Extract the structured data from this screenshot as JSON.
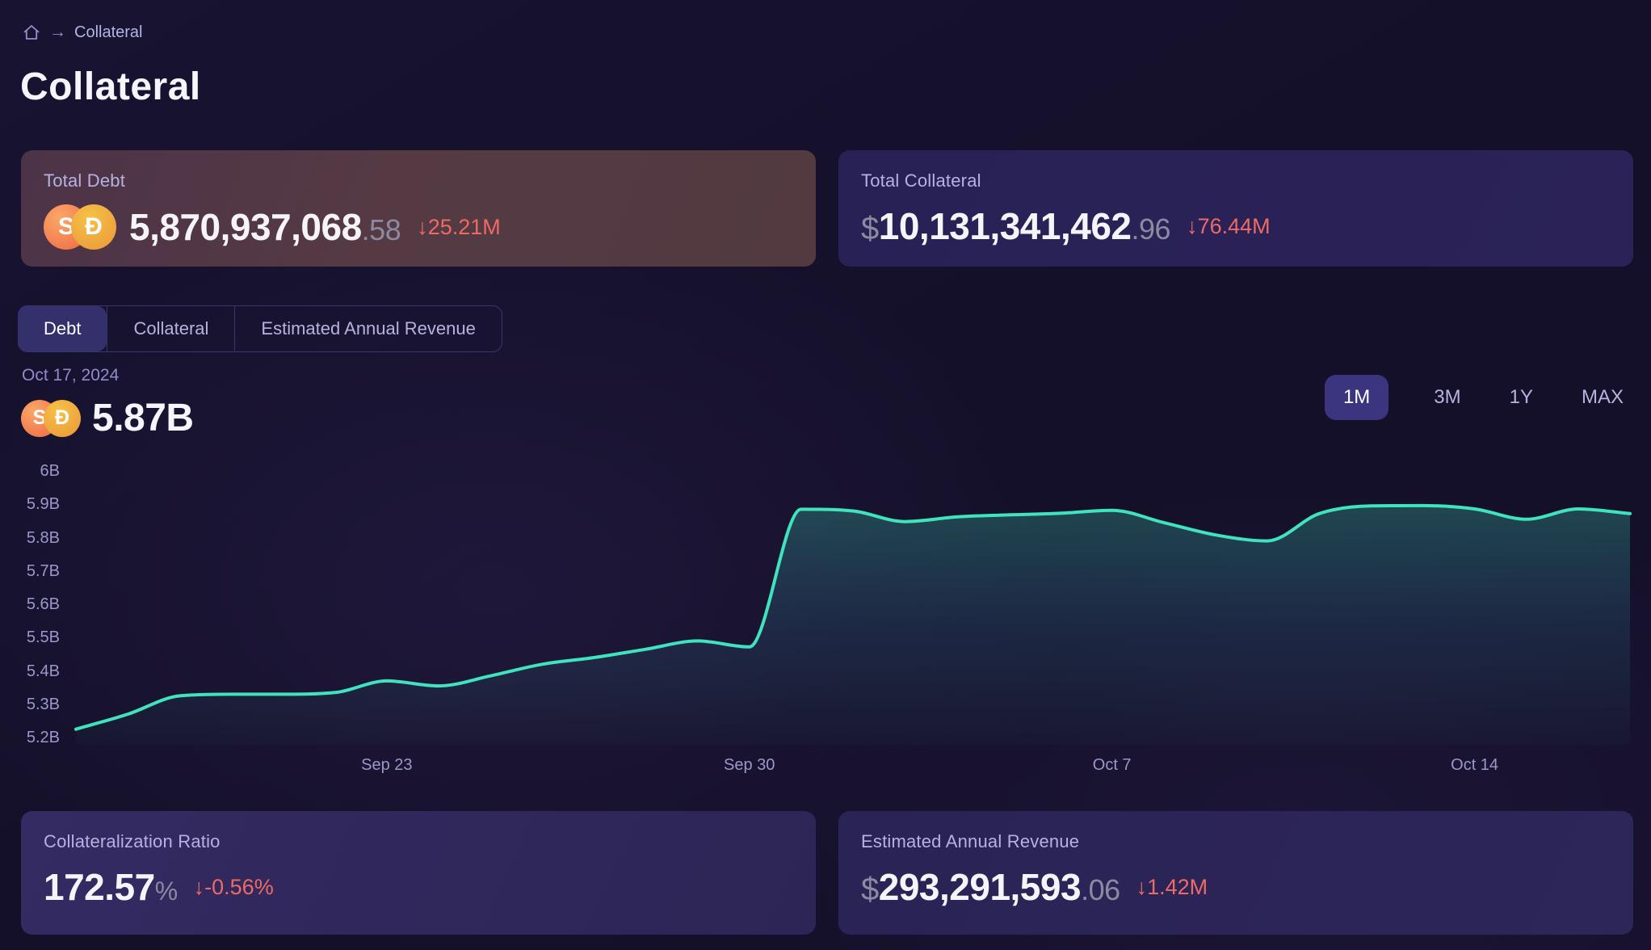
{
  "breadcrumb": {
    "separator": "→",
    "current": "Collateral"
  },
  "page_title": "Collateral",
  "token_icons": {
    "s_symbol": "S",
    "d_symbol": "Đ"
  },
  "stats": {
    "total_debt": {
      "label": "Total Debt",
      "value_int": "5,870,937,068",
      "value_dec": ".58",
      "delta": "↓25.21M"
    },
    "total_collateral": {
      "label": "Total Collateral",
      "currency": "$",
      "value_int": "10,131,341,462",
      "value_dec": ".96",
      "delta": "↓76.44M"
    }
  },
  "tabs": [
    {
      "label": "Debt",
      "active": true
    },
    {
      "label": "Collateral",
      "active": false
    },
    {
      "label": "Estimated Annual Revenue",
      "active": false
    }
  ],
  "chart_header": {
    "date": "Oct 17, 2024",
    "value": "5.87B"
  },
  "ranges": [
    {
      "label": "1M",
      "active": true
    },
    {
      "label": "3M",
      "active": false
    },
    {
      "label": "1Y",
      "active": false
    },
    {
      "label": "MAX",
      "active": false
    }
  ],
  "chart_data": {
    "type": "area",
    "series_label": "Debt",
    "x": [
      "Sep 17",
      "Sep 18",
      "Sep 19",
      "Sep 20",
      "Sep 21",
      "Sep 22",
      "Sep 23",
      "Sep 24",
      "Sep 25",
      "Sep 26",
      "Sep 27",
      "Sep 28",
      "Sep 29",
      "Sep 30",
      "Oct 1",
      "Oct 2",
      "Oct 3",
      "Oct 4",
      "Oct 5",
      "Oct 6",
      "Oct 7",
      "Oct 8",
      "Oct 9",
      "Oct 10",
      "Oct 11",
      "Oct 12",
      "Oct 13",
      "Oct 14",
      "Oct 15",
      "Oct 16",
      "Oct 17"
    ],
    "values": [
      5.225,
      5.27,
      5.325,
      5.33,
      5.33,
      5.335,
      5.37,
      5.355,
      5.385,
      5.42,
      5.44,
      5.465,
      5.49,
      5.472,
      5.885,
      5.88,
      5.848,
      5.862,
      5.868,
      5.873,
      5.882,
      5.845,
      5.808,
      5.79,
      5.872,
      5.895,
      5.896,
      5.886,
      5.855,
      5.886,
      5.872
    ],
    "unit": "B",
    "ylim": [
      5.2,
      6.0
    ],
    "grid": false,
    "legend": false,
    "y_ticks": [
      {
        "label": "6B",
        "value": 6.0
      },
      {
        "label": "5.9B",
        "value": 5.9
      },
      {
        "label": "5.8B",
        "value": 5.8
      },
      {
        "label": "5.7B",
        "value": 5.7
      },
      {
        "label": "5.6B",
        "value": 5.6
      },
      {
        "label": "5.5B",
        "value": 5.5
      },
      {
        "label": "5.4B",
        "value": 5.4
      },
      {
        "label": "5.3B",
        "value": 5.3
      },
      {
        "label": "5.2B",
        "value": 5.2
      }
    ],
    "x_ticks": [
      {
        "label": "Sep 23",
        "index": 6
      },
      {
        "label": "Sep 30",
        "index": 13
      },
      {
        "label": "Oct 7",
        "index": 20
      },
      {
        "label": "Oct 14",
        "index": 27
      }
    ],
    "line_color": "#3fe3bd"
  },
  "footer_stats": {
    "ratio": {
      "label": "Collateralization Ratio",
      "value": "172.57",
      "suffix": "%",
      "delta": "↓-0.56%"
    },
    "revenue": {
      "label": "Estimated Annual Revenue",
      "currency": "$",
      "value_int": "293,291,593",
      "value_dec": ".06",
      "delta": "↓1.42M"
    }
  },
  "colors": {
    "accent_line": "#3fe3bd",
    "negative": "#ee6a64",
    "label_lavender": "#b6b2e2",
    "tick": "#9b98cb",
    "active_tab_bg": "#34306c",
    "active_range_bg": "#3b3580",
    "debt_card_bg": "#523a44",
    "indigo_card_bg": "#2a2355",
    "coin_s": "#f2784c",
    "coin_d": "#eda13c"
  }
}
